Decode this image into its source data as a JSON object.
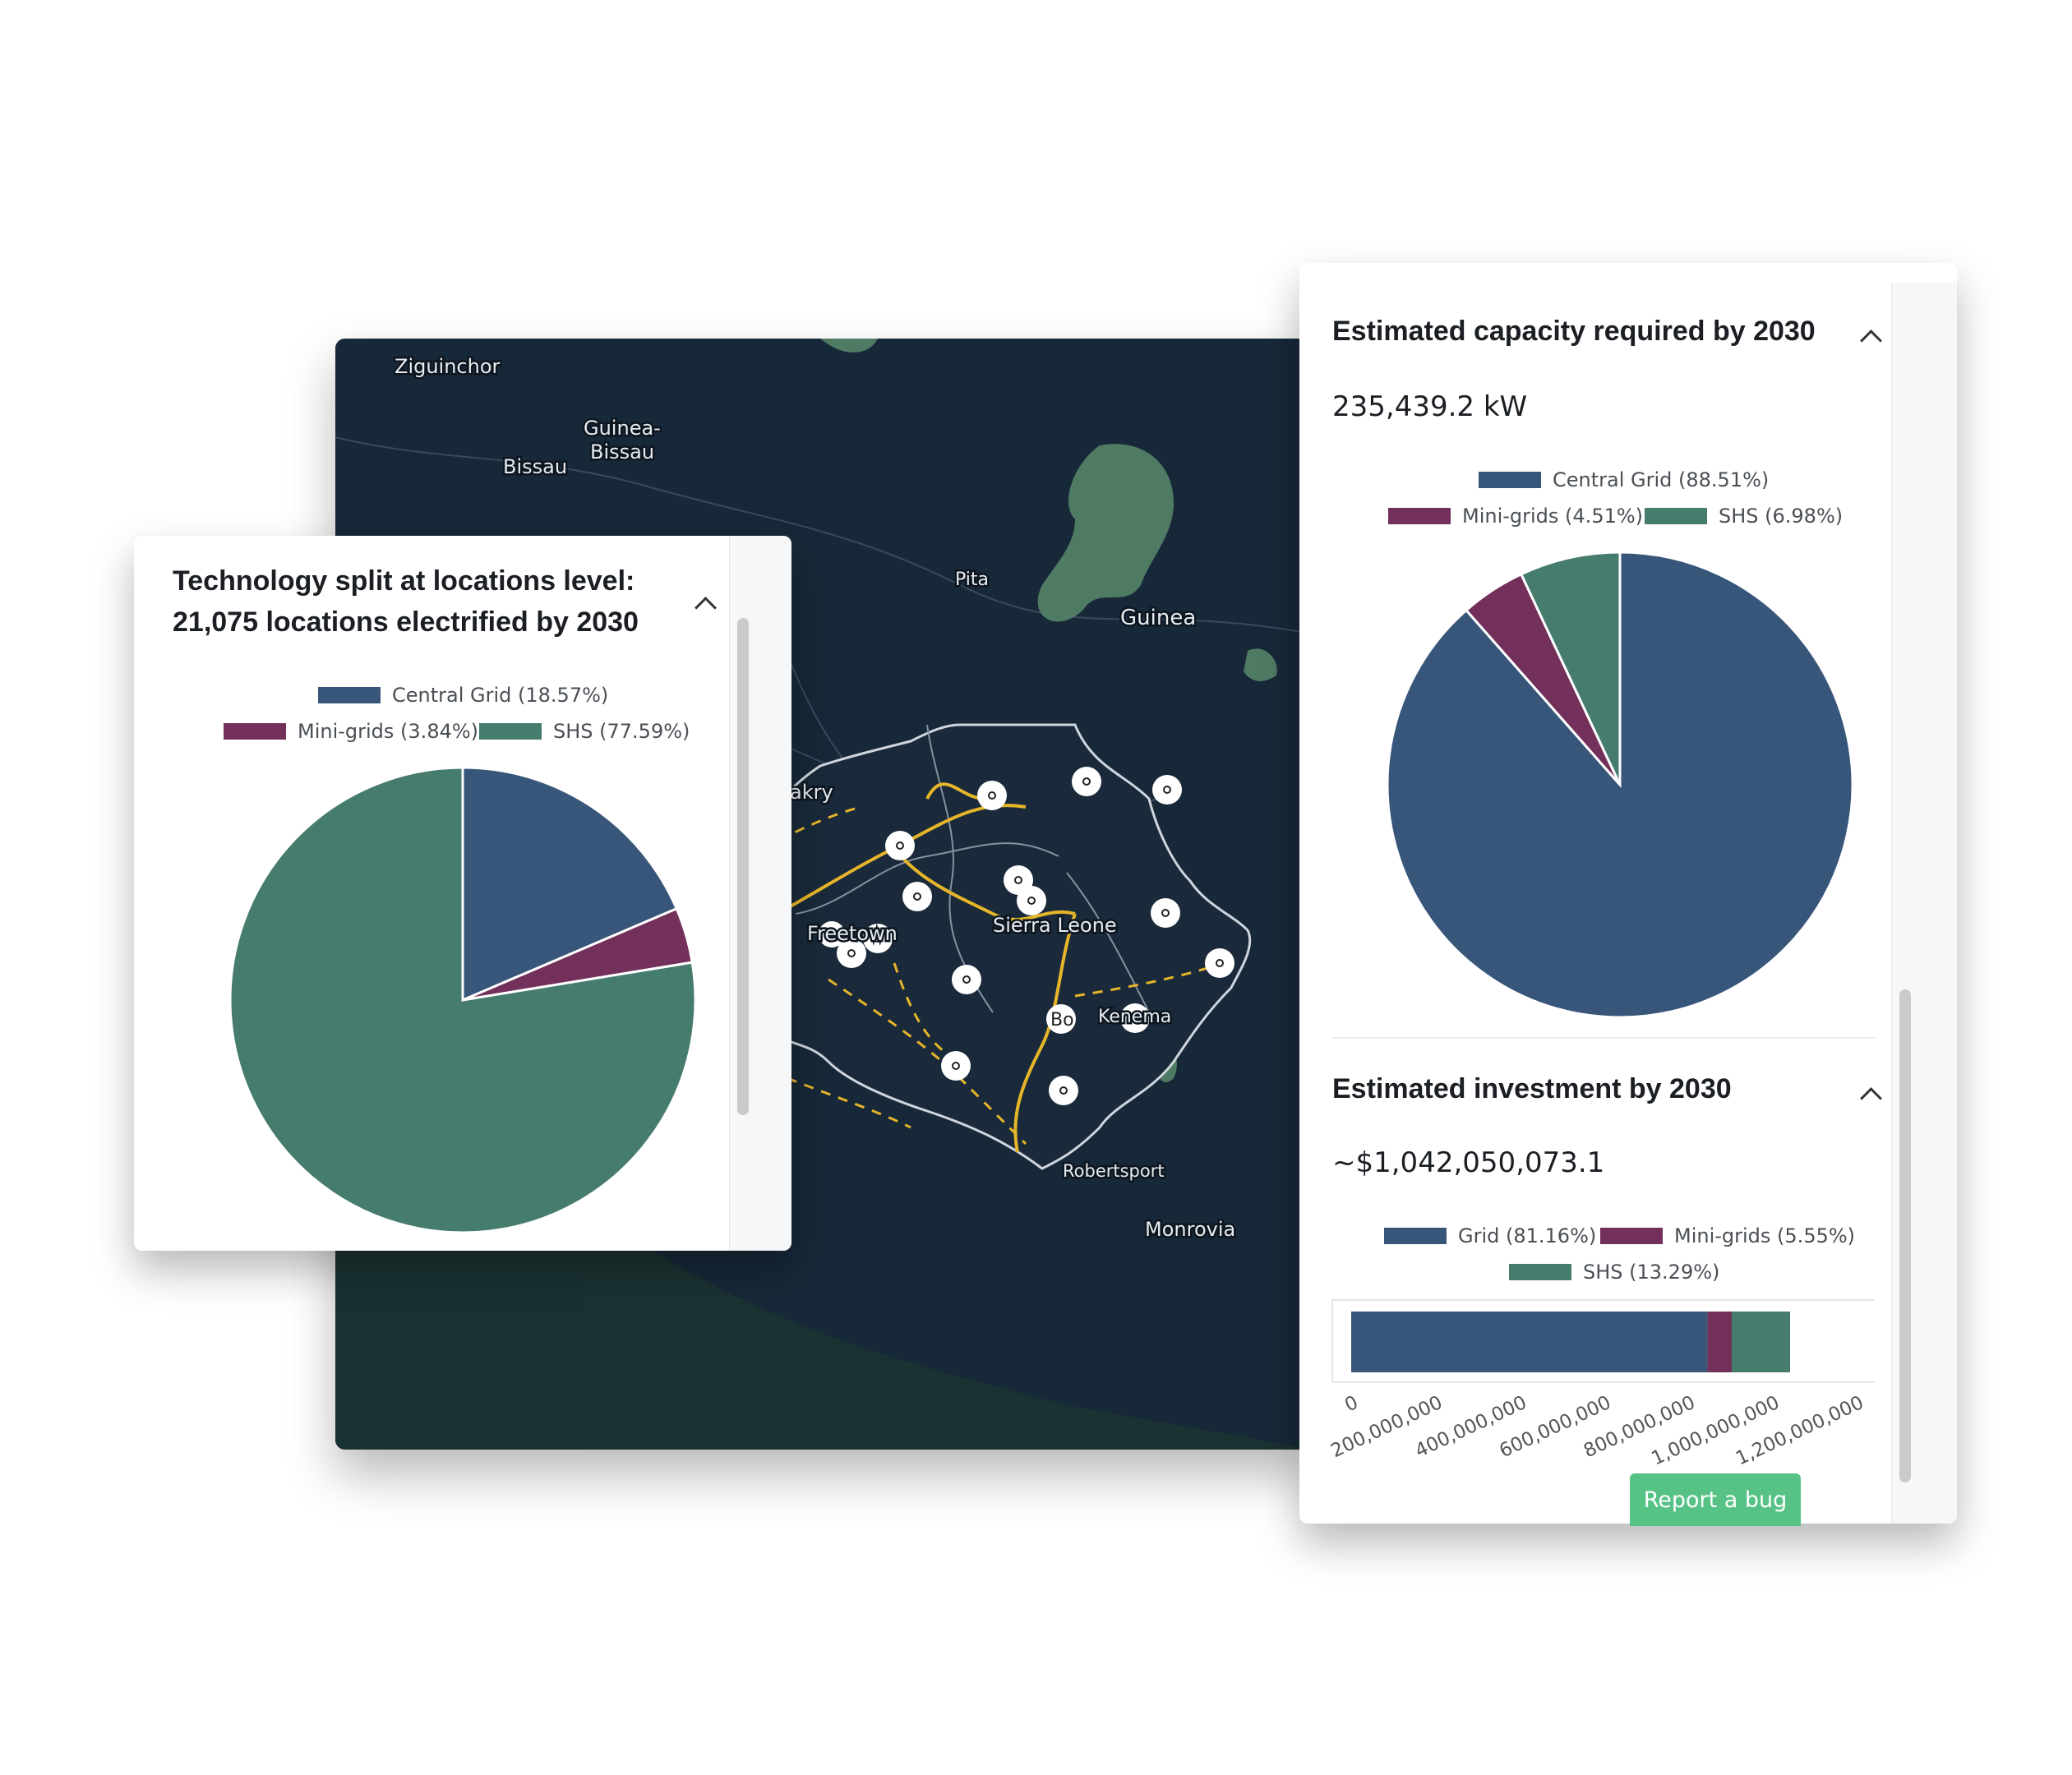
{
  "map": {
    "labels": {
      "ziguinchor": "Ziguinchor",
      "guinea_bissau_1": "Guinea-",
      "guinea_bissau_2": "Bissau",
      "bissau": "Bissau",
      "pita": "Pita",
      "guinea": "Guinea",
      "conakry": "akry",
      "freetown": "Freetown",
      "sierra_leone": "Sierra Leone",
      "bo": "Bo",
      "kenema": "Kenema",
      "robertsport": "Robertsport",
      "monrovia": "Monrovia"
    }
  },
  "left_panel": {
    "title_line1": "Technology split at locations level:",
    "title_line2": "21,075 locations electrified by 2030",
    "legend": [
      {
        "label": "Central Grid (18.57%)",
        "color": "#38567a"
      },
      {
        "label": "Mini-grids (3.84%)",
        "color": "#72305a"
      },
      {
        "label": "SHS (77.59%)",
        "color": "#467c6e"
      }
    ]
  },
  "capacity_panel": {
    "title": "Estimated capacity required by 2030",
    "value": "235,439.2 kW",
    "legend": [
      {
        "label": "Central Grid (88.51%)",
        "color": "#38567a"
      },
      {
        "label": "Mini-grids (4.51%)",
        "color": "#72305a"
      },
      {
        "label": "SHS (6.98%)",
        "color": "#467c6e"
      }
    ]
  },
  "investment_panel": {
    "title": "Estimated investment by 2030",
    "value": "~$1,042,050,073.1",
    "legend": [
      {
        "label": "Grid (81.16%)",
        "color": "#38567a"
      },
      {
        "label": "Mini-grids (5.55%)",
        "color": "#72305a"
      },
      {
        "label": "SHS (13.29%)",
        "color": "#467c6e"
      }
    ]
  },
  "report_bug_label": "Report a bug",
  "chart_data": [
    {
      "type": "pie",
      "title": "Technology split at locations level: 21,075 locations electrified by 2030",
      "categories": [
        "Central Grid",
        "Mini-grids",
        "SHS"
      ],
      "values": [
        18.57,
        3.84,
        77.59
      ],
      "colors": [
        "#38567a",
        "#72305a",
        "#467c6e"
      ],
      "legend": "top"
    },
    {
      "type": "pie",
      "title": "Estimated capacity required by 2030",
      "categories": [
        "Central Grid",
        "Mini-grids",
        "SHS"
      ],
      "values": [
        88.51,
        4.51,
        6.98
      ],
      "colors": [
        "#38567a",
        "#72305a",
        "#467c6e"
      ],
      "legend": "top"
    },
    {
      "type": "bar",
      "orientation": "horizontal-stacked",
      "title": "Estimated investment by 2030",
      "categories": [
        "Grid",
        "Mini-grids",
        "SHS"
      ],
      "values": [
        845700000,
        57800000,
        138500000
      ],
      "colors": [
        "#38567a",
        "#72305a",
        "#467c6e"
      ],
      "xlim": [
        0,
        1200000000
      ],
      "ticks": [
        "0",
        "200,000,000",
        "400,000,000",
        "600,000,000",
        "800,000,000",
        "1,000,000,000",
        "1,200,000,000"
      ],
      "grid": false,
      "legend": "top"
    }
  ]
}
